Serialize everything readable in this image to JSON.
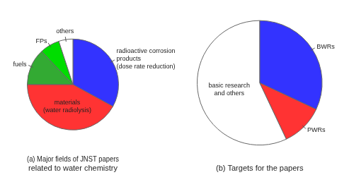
{
  "chart_data": [
    {
      "type": "pie",
      "title": "(a) Major fields of JNST papers\nrelated to water chemistry",
      "categories": [
        "radioactive corrosion\nproducts\n(dose rate reduction)",
        "materials\n(water radiolysis)",
        "fuels",
        "FPs",
        "others"
      ],
      "values": [
        33,
        42,
        13,
        7,
        5
      ],
      "colors": [
        "#3333ff",
        "#ff3333",
        "#33aa33",
        "#00dd00",
        "#ffffff"
      ]
    },
    {
      "type": "pie",
      "title": "(b) Targets for the papers",
      "categories": [
        "BWRs",
        "PWRs",
        "basic research\nand others"
      ],
      "values": [
        32,
        11,
        57
      ],
      "colors": [
        "#3333ff",
        "#ff3333",
        "#ffffff"
      ]
    }
  ]
}
